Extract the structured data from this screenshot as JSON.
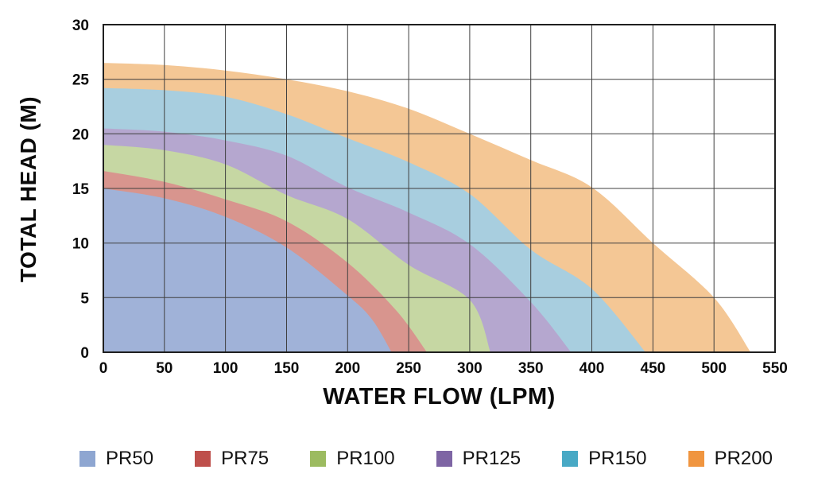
{
  "chart_data": {
    "type": "area",
    "title": "",
    "xlabel": "WATER FLOW (LPM)",
    "ylabel": "TOTAL HEAD (M)",
    "xlim": [
      0,
      550
    ],
    "ylim": [
      0,
      30
    ],
    "x_ticks": [
      0,
      50,
      100,
      150,
      200,
      250,
      300,
      350,
      400,
      450,
      500,
      550
    ],
    "y_ticks": [
      0,
      5,
      10,
      15,
      20,
      25,
      30
    ],
    "grid": true,
    "grid_color": "#3f3f3f",
    "border_color": "#1f1f1f",
    "legend_position": "bottom",
    "series": [
      {
        "name": "PR50",
        "fill": "#A0B2D8",
        "legend_color": "#8EA6D1",
        "points": [
          [
            0,
            15.0
          ],
          [
            50,
            14.1
          ],
          [
            100,
            12.4
          ],
          [
            150,
            9.6
          ],
          [
            200,
            5.2
          ],
          [
            220,
            3.0
          ],
          [
            236,
            0
          ]
        ]
      },
      {
        "name": "PR75",
        "fill": "#D8958E",
        "legend_color": "#BE4F4B",
        "points": [
          [
            0,
            16.6
          ],
          [
            50,
            15.6
          ],
          [
            100,
            14.0
          ],
          [
            150,
            12.0
          ],
          [
            200,
            8.2
          ],
          [
            240,
            3.8
          ],
          [
            265,
            0
          ]
        ]
      },
      {
        "name": "PR100",
        "fill": "#C6D7A3",
        "legend_color": "#9CBB60",
        "points": [
          [
            0,
            19.0
          ],
          [
            50,
            18.5
          ],
          [
            100,
            17.2
          ],
          [
            150,
            14.4
          ],
          [
            200,
            12.2
          ],
          [
            250,
            8.0
          ],
          [
            300,
            4.8
          ],
          [
            317,
            0
          ]
        ]
      },
      {
        "name": "PR125",
        "fill": "#B5A7CF",
        "legend_color": "#7E65A4",
        "points": [
          [
            0,
            20.5
          ],
          [
            50,
            20.2
          ],
          [
            100,
            19.4
          ],
          [
            150,
            18.0
          ],
          [
            200,
            15.1
          ],
          [
            250,
            12.8
          ],
          [
            300,
            9.9
          ],
          [
            350,
            4.6
          ],
          [
            383,
            0
          ]
        ]
      },
      {
        "name": "PR150",
        "fill": "#A8CEDF",
        "legend_color": "#48A9C5",
        "points": [
          [
            0,
            24.2
          ],
          [
            50,
            24.0
          ],
          [
            100,
            23.4
          ],
          [
            150,
            21.8
          ],
          [
            200,
            19.6
          ],
          [
            250,
            17.4
          ],
          [
            300,
            14.5
          ],
          [
            350,
            9.4
          ],
          [
            400,
            5.8
          ],
          [
            444,
            0
          ]
        ]
      },
      {
        "name": "PR200",
        "fill": "#F4C795",
        "legend_color": "#F0953F",
        "points": [
          [
            0,
            26.5
          ],
          [
            50,
            26.3
          ],
          [
            100,
            25.8
          ],
          [
            150,
            25.0
          ],
          [
            200,
            23.9
          ],
          [
            250,
            22.3
          ],
          [
            300,
            20.0
          ],
          [
            350,
            17.6
          ],
          [
            400,
            15.1
          ],
          [
            450,
            10.0
          ],
          [
            500,
            5.0
          ],
          [
            530,
            0
          ]
        ]
      }
    ]
  }
}
